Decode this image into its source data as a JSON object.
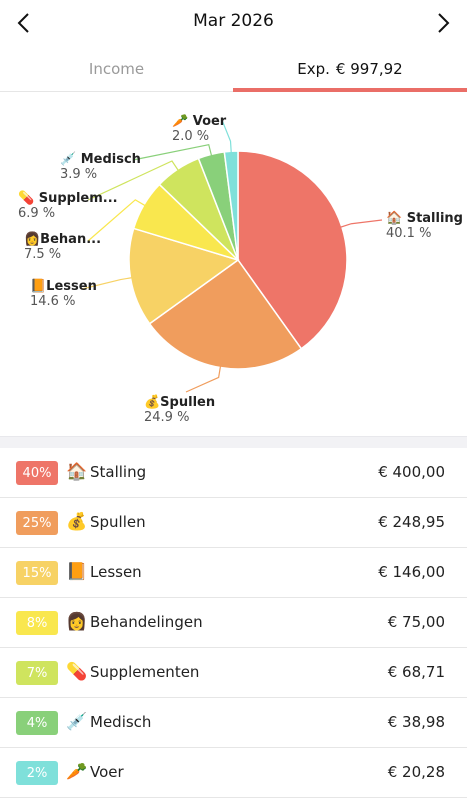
{
  "header": {
    "month": "Mar 2026",
    "prev_icon": "chevron-left-icon",
    "next_icon": "chevron-right-icon"
  },
  "tabs": {
    "income_label": "Income",
    "expense_prefix": "Exp.",
    "expense_total": "€ 997,92",
    "active": "expense",
    "accent": "#ea6e67"
  },
  "chart_data": {
    "type": "pie",
    "start": "12 o'clock, clockwise",
    "slices": [
      {
        "name": "Stalling",
        "icon": "🏠",
        "pct_label": "40.1 %",
        "value": 40.1,
        "color": "#ee7568"
      },
      {
        "name": "Spullen",
        "icon": "💰",
        "pct_label": "24.9 %",
        "value": 24.9,
        "color": "#f09d5d"
      },
      {
        "name": "Lessen",
        "icon": "📙",
        "pct_label": "14.6 %",
        "value": 14.6,
        "color": "#f7d265"
      },
      {
        "name": "Behan...",
        "icon": "👩",
        "pct_label": "7.5 %",
        "value": 7.5,
        "color": "#f9e74e"
      },
      {
        "name": "Supplem...",
        "icon": "💊",
        "pct_label": "6.9 %",
        "value": 6.9,
        "color": "#cfe45e"
      },
      {
        "name": "Medisch",
        "icon": "💉",
        "pct_label": "3.9 %",
        "value": 3.9,
        "color": "#89d07a"
      },
      {
        "name": "Voer",
        "icon": "🥕",
        "pct_label": "2.0 %",
        "value": 2.0,
        "color": "#7fe0da"
      }
    ]
  },
  "categories": [
    {
      "badge": "40%",
      "icon": "🏠",
      "name": "Stalling",
      "amount": "€ 400,00",
      "color": "#ee7568"
    },
    {
      "badge": "25%",
      "icon": "💰",
      "name": "Spullen",
      "amount": "€ 248,95",
      "color": "#f09d5d"
    },
    {
      "badge": "15%",
      "icon": "📙",
      "name": "Lessen",
      "amount": "€ 146,00",
      "color": "#f7d265"
    },
    {
      "badge": "8%",
      "icon": "👩",
      "name": "Behandelingen",
      "amount": "€ 75,00",
      "color": "#f9e74e"
    },
    {
      "badge": "7%",
      "icon": "💊",
      "name": "Supplementen",
      "amount": "€ 68,71",
      "color": "#cfe45e"
    },
    {
      "badge": "4%",
      "icon": "💉",
      "name": "Medisch",
      "amount": "€ 38,98",
      "color": "#89d07a"
    },
    {
      "badge": "2%",
      "icon": "🥕",
      "name": "Voer",
      "amount": "€ 20,28",
      "color": "#7fe0da"
    }
  ]
}
